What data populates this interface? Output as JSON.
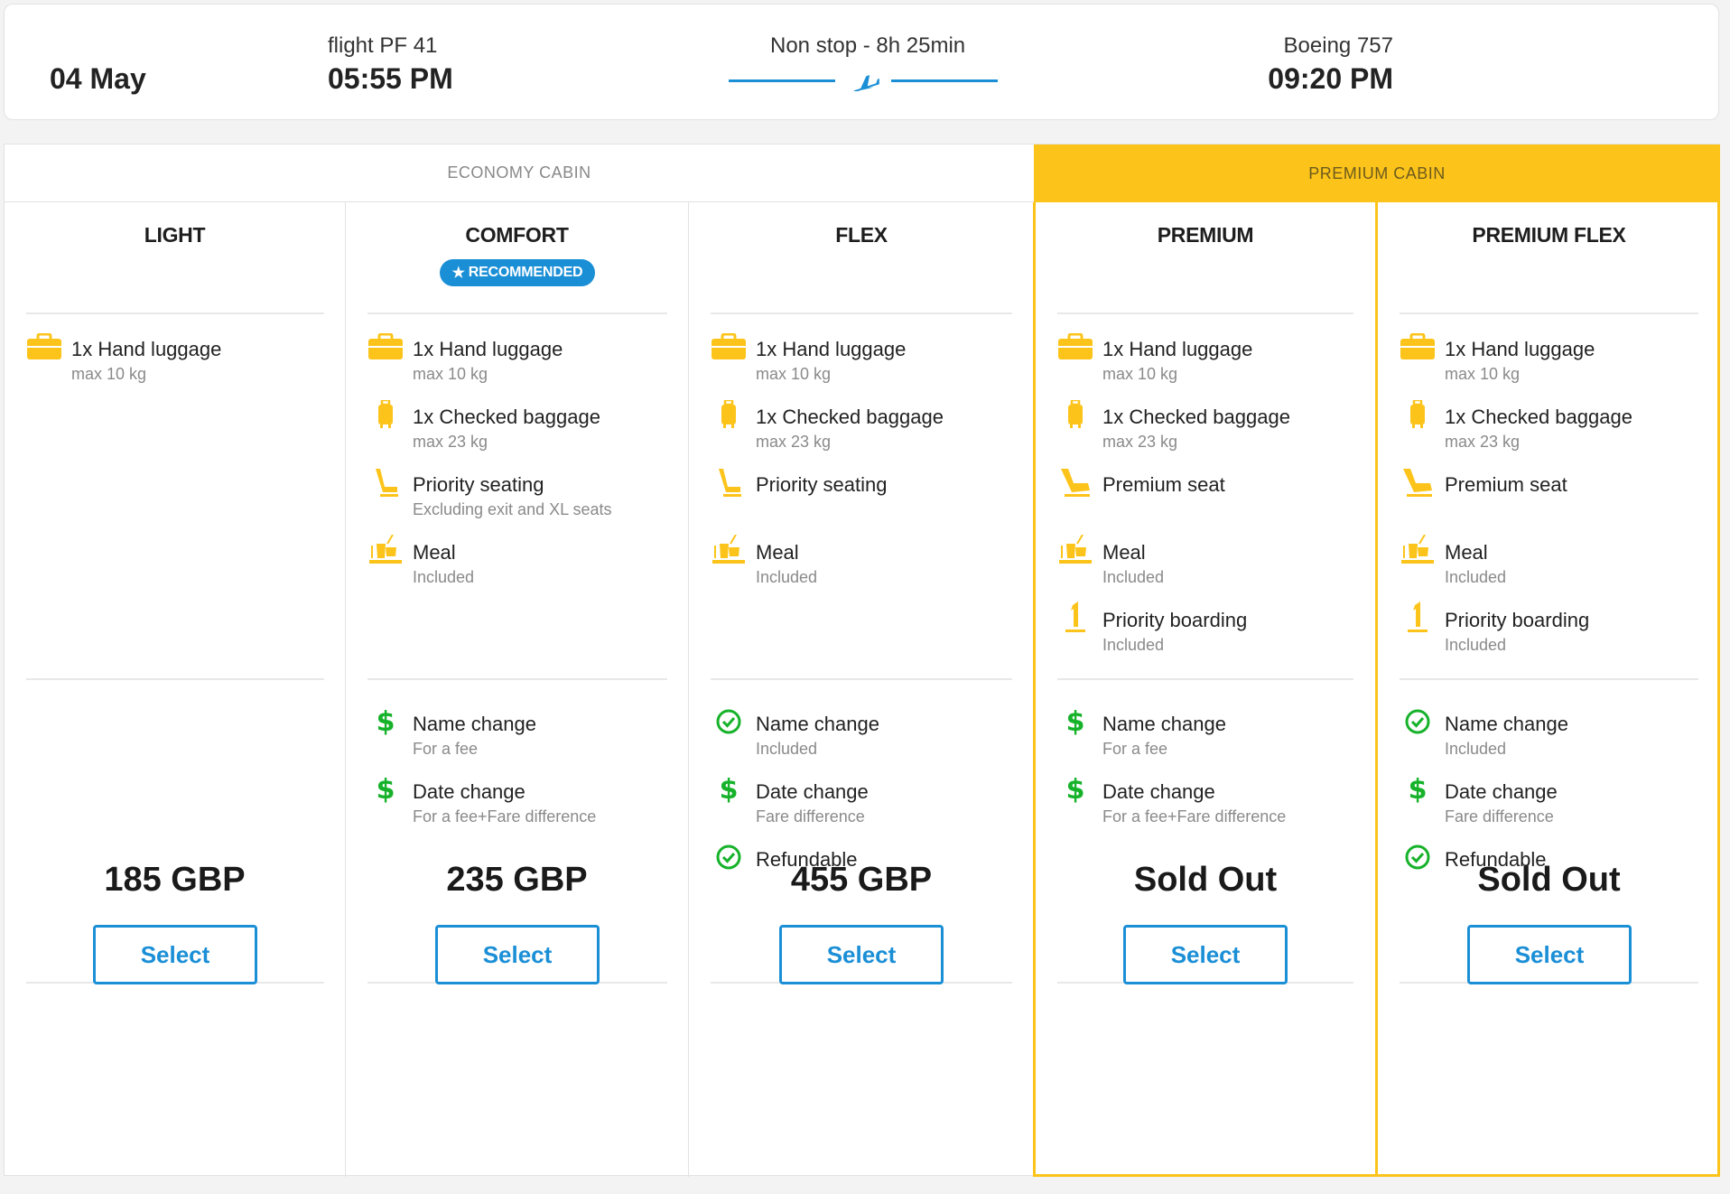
{
  "flight": {
    "date": "04 May",
    "flight_number": "flight PF 41",
    "departure_time": "05:55 PM",
    "route": "Non stop - 8h 25min",
    "aircraft": "Boeing 757",
    "arrival_time": "09:20 PM"
  },
  "cabins": {
    "economy": "ECONOMY CABIN",
    "premium": "PREMIUM CABIN"
  },
  "colors": {
    "accent": "#1b8fd6",
    "premium": "#fcc41a",
    "feature_icon": "#fcc41a",
    "green": "#16b22a"
  },
  "recommended_badge": "RECOMMENDED",
  "columns": [
    {
      "title": "LIGHT",
      "features": [
        {
          "icon": "briefcase-icon",
          "title": "1x Hand luggage",
          "sub": "max 10 kg"
        }
      ],
      "flex": [],
      "price": "185 GBP",
      "button": "Select"
    },
    {
      "title": "COMFORT",
      "features": [
        {
          "icon": "briefcase-icon",
          "title": "1x Hand luggage",
          "sub": "max 10 kg"
        },
        {
          "icon": "suitcase-icon",
          "title": "1x Checked baggage",
          "sub": "max 23 kg"
        },
        {
          "icon": "seat-icon",
          "title": "Priority seating",
          "sub": "Excluding exit and XL seats"
        },
        {
          "icon": "meal-icon",
          "title": "Meal",
          "sub": "Included"
        }
      ],
      "flex": [
        {
          "icon": "dollar-icon",
          "title": "Name change",
          "sub": "For a fee"
        },
        {
          "icon": "dollar-icon",
          "title": "Date change",
          "sub": "For a fee+Fare difference"
        }
      ],
      "price": "235 GBP",
      "button": "Select"
    },
    {
      "title": "FLEX",
      "features": [
        {
          "icon": "briefcase-icon",
          "title": "1x Hand luggage",
          "sub": "max 10 kg"
        },
        {
          "icon": "suitcase-icon",
          "title": "1x Checked baggage",
          "sub": "max 23 kg"
        },
        {
          "icon": "seat-icon",
          "title": "Priority seating",
          "sub": ""
        },
        {
          "icon": "meal-icon",
          "title": "Meal",
          "sub": "Included"
        }
      ],
      "flex": [
        {
          "icon": "check-circle-icon",
          "title": "Name change",
          "sub": "Included"
        },
        {
          "icon": "dollar-icon",
          "title": "Date change",
          "sub": "Fare difference"
        },
        {
          "icon": "check-circle-icon",
          "title": "Refundable",
          "sub": ""
        }
      ],
      "price": "455 GBP",
      "button": "Select"
    },
    {
      "title": "PREMIUM",
      "features": [
        {
          "icon": "briefcase-icon",
          "title": "1x Hand luggage",
          "sub": "max 10 kg"
        },
        {
          "icon": "suitcase-icon",
          "title": "1x Checked baggage",
          "sub": "max 23 kg"
        },
        {
          "icon": "premium-seat-icon",
          "title": "Premium seat",
          "sub": ""
        },
        {
          "icon": "meal-icon",
          "title": "Meal",
          "sub": "Included"
        },
        {
          "icon": "priority-one-icon",
          "title": "Priority boarding",
          "sub": "Included"
        }
      ],
      "flex": [
        {
          "icon": "dollar-icon",
          "title": "Name change",
          "sub": "For a fee"
        },
        {
          "icon": "dollar-icon",
          "title": "Date change",
          "sub": "For a fee+Fare difference"
        }
      ],
      "price": "Sold Out",
      "button": "Select"
    },
    {
      "title": "PREMIUM FLEX",
      "features": [
        {
          "icon": "briefcase-icon",
          "title": "1x Hand luggage",
          "sub": "max 10 kg"
        },
        {
          "icon": "suitcase-icon",
          "title": "1x Checked baggage",
          "sub": "max 23 kg"
        },
        {
          "icon": "premium-seat-icon",
          "title": "Premium seat",
          "sub": ""
        },
        {
          "icon": "meal-icon",
          "title": "Meal",
          "sub": "Included"
        },
        {
          "icon": "priority-one-icon",
          "title": "Priority boarding",
          "sub": "Included"
        }
      ],
      "flex": [
        {
          "icon": "check-circle-icon",
          "title": "Name change",
          "sub": "Included"
        },
        {
          "icon": "dollar-icon",
          "title": "Date change",
          "sub": "Fare difference"
        },
        {
          "icon": "check-circle-icon",
          "title": "Refundable",
          "sub": ""
        }
      ],
      "price": "Sold Out",
      "button": "Select"
    }
  ]
}
